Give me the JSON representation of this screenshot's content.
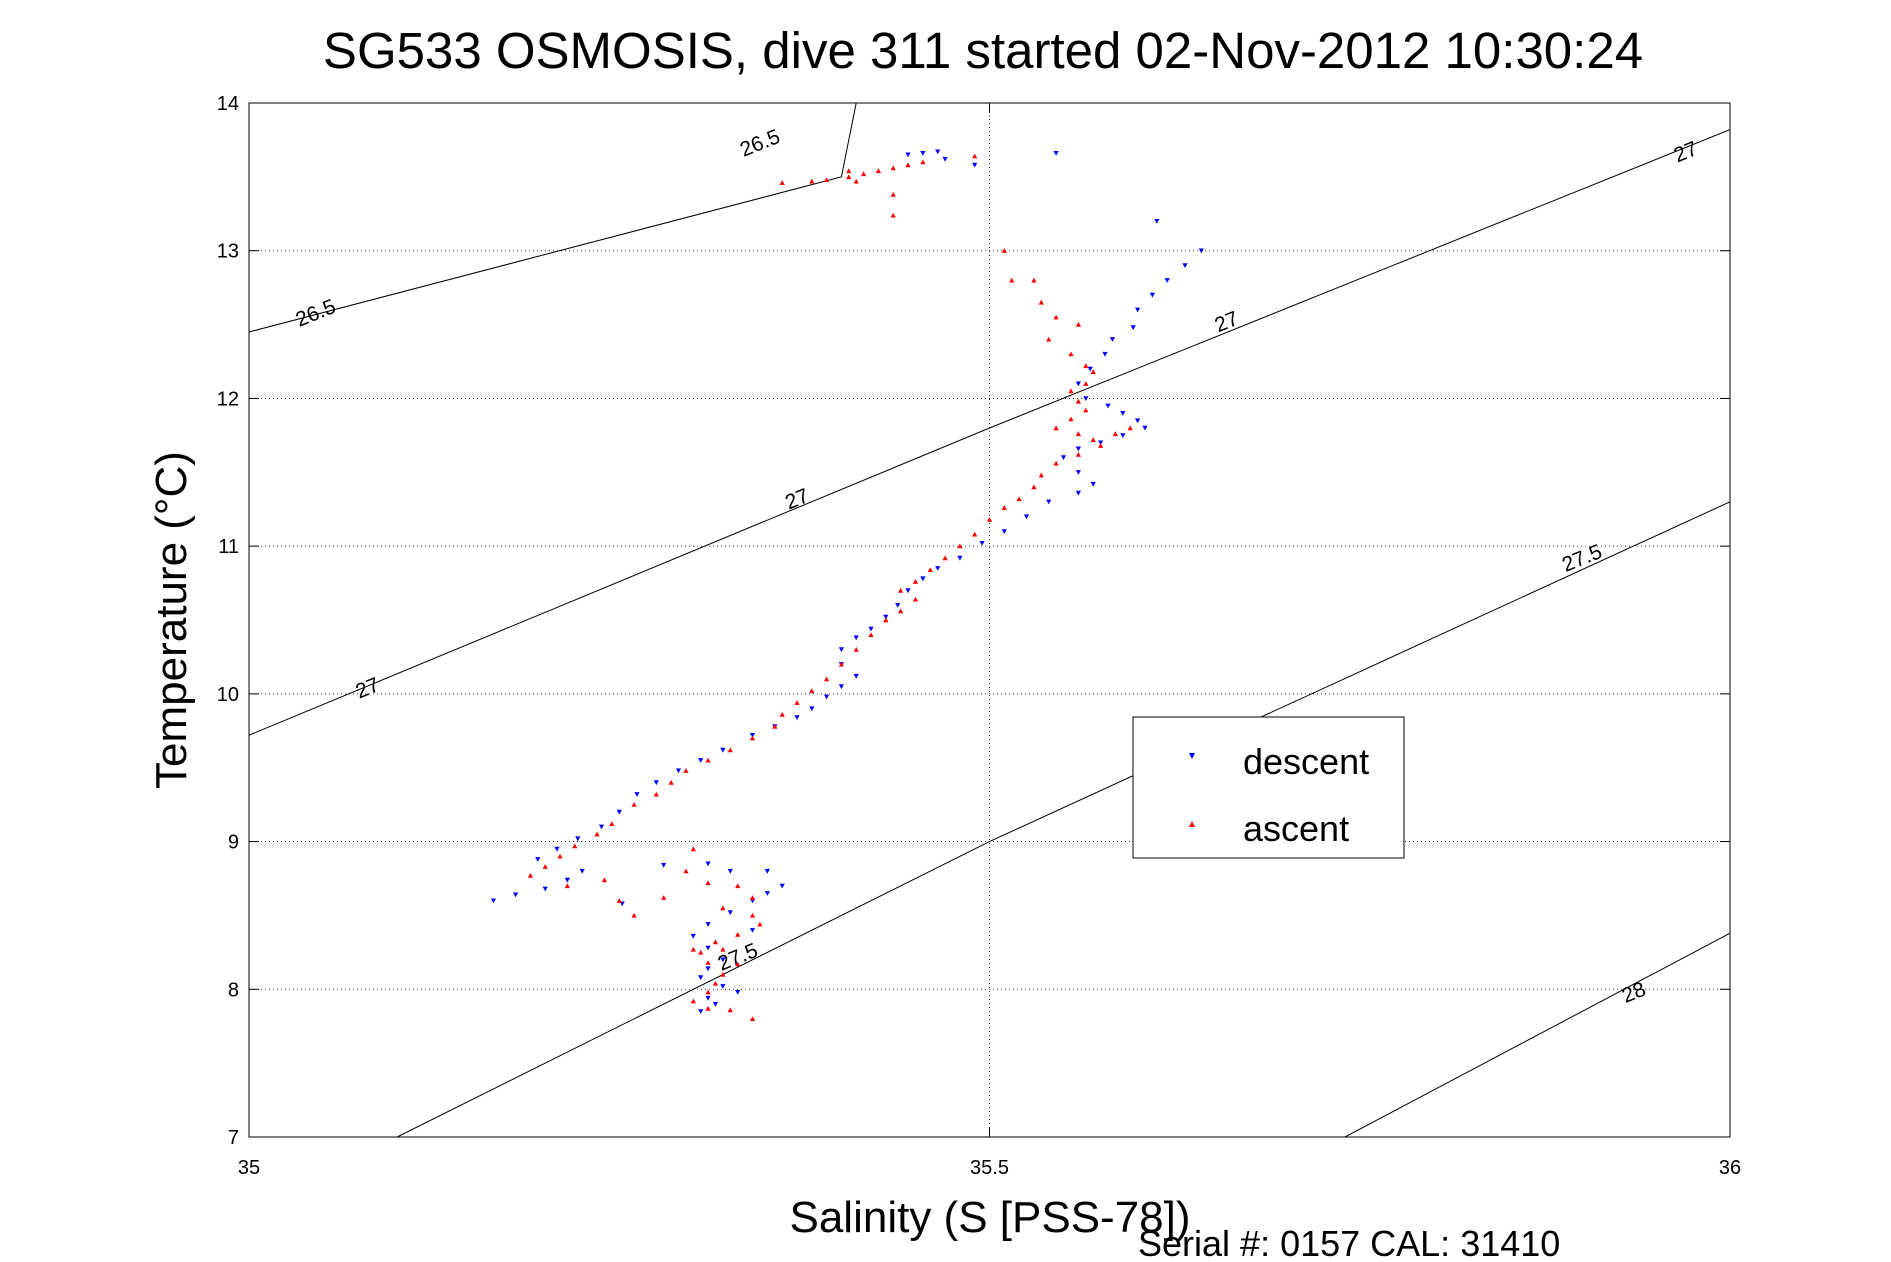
{
  "chart_data": {
    "type": "scatter",
    "title": "SG533 OSMOSIS, dive 311 started 02-Nov-2012 10:30:24",
    "xlabel": "Salinity (S [PSS-78])",
    "ylabel": "Temperature (°C)",
    "xlim": [
      35,
      36
    ],
    "ylim": [
      7,
      14
    ],
    "xticks": [
      35,
      35.5,
      36
    ],
    "xtick_labels": [
      "35",
      "35.5",
      "36"
    ],
    "yticks": [
      7,
      8,
      9,
      10,
      11,
      12,
      13,
      14
    ],
    "ytick_labels": [
      "7",
      "8",
      "9",
      "10",
      "11",
      "12",
      "13",
      "14"
    ],
    "grid": true,
    "legend_position": "center-right",
    "density_contours": [
      {
        "label": "26.5",
        "points": [
          [
            35,
            12.45
          ],
          [
            35.4,
            13.5
          ],
          [
            35.41,
            14.0
          ]
        ]
      },
      {
        "label": "27",
        "points": [
          [
            35,
            9.72
          ],
          [
            35.5,
            11.8
          ],
          [
            36,
            13.82
          ]
        ]
      },
      {
        "label": "27.5",
        "points": [
          [
            35.1,
            7.0
          ],
          [
            35.5,
            9.0
          ],
          [
            36,
            11.3
          ]
        ]
      },
      {
        "label": "28",
        "points": [
          [
            35.74,
            7.0
          ],
          [
            36,
            8.38
          ]
        ]
      }
    ],
    "contour_labels": [
      {
        "text": "26.5",
        "s": 35.345,
        "t": 13.73
      },
      {
        "text": "26.5",
        "s": 35.045,
        "t": 12.58
      },
      {
        "text": "27",
        "s": 35.37,
        "t": 11.32
      },
      {
        "text": "27",
        "s": 35.08,
        "t": 10.04
      },
      {
        "text": "27",
        "s": 35.66,
        "t": 12.52
      },
      {
        "text": "27",
        "s": 35.97,
        "t": 13.67
      },
      {
        "text": "27.5",
        "s": 35.33,
        "t": 8.22
      },
      {
        "text": "27.5",
        "s": 35.9,
        "t": 10.92
      },
      {
        "text": "28",
        "s": 35.935,
        "t": 7.98
      }
    ],
    "series": [
      {
        "name": "descent",
        "color": "#0000ff",
        "marker": "triangle-down",
        "points": [
          [
            35.465,
            13.67
          ],
          [
            35.455,
            13.66
          ],
          [
            35.445,
            13.65
          ],
          [
            35.47,
            13.62
          ],
          [
            35.49,
            13.58
          ],
          [
            35.545,
            13.66
          ],
          [
            35.613,
            13.2
          ],
          [
            35.643,
            13.0
          ],
          [
            35.632,
            12.9
          ],
          [
            35.62,
            12.8
          ],
          [
            35.61,
            12.7
          ],
          [
            35.6,
            12.6
          ],
          [
            35.597,
            12.48
          ],
          [
            35.583,
            12.4
          ],
          [
            35.578,
            12.3
          ],
          [
            35.568,
            12.2
          ],
          [
            35.56,
            12.1
          ],
          [
            35.565,
            12.0
          ],
          [
            35.58,
            11.95
          ],
          [
            35.59,
            11.9
          ],
          [
            35.6,
            11.85
          ],
          [
            35.605,
            11.8
          ],
          [
            35.59,
            11.75
          ],
          [
            35.575,
            11.7
          ],
          [
            35.56,
            11.66
          ],
          [
            35.55,
            11.6
          ],
          [
            35.56,
            11.5
          ],
          [
            35.57,
            11.42
          ],
          [
            35.56,
            11.36
          ],
          [
            35.54,
            11.3
          ],
          [
            35.525,
            11.2
          ],
          [
            35.51,
            11.1
          ],
          [
            35.495,
            11.02
          ],
          [
            35.48,
            10.92
          ],
          [
            35.465,
            10.85
          ],
          [
            35.455,
            10.78
          ],
          [
            35.445,
            10.7
          ],
          [
            35.438,
            10.6
          ],
          [
            35.43,
            10.52
          ],
          [
            35.42,
            10.44
          ],
          [
            35.41,
            10.38
          ],
          [
            35.4,
            10.3
          ],
          [
            35.4,
            10.2
          ],
          [
            35.41,
            10.12
          ],
          [
            35.4,
            10.05
          ],
          [
            35.39,
            9.98
          ],
          [
            35.38,
            9.9
          ],
          [
            35.37,
            9.84
          ],
          [
            35.355,
            9.78
          ],
          [
            35.34,
            9.72
          ],
          [
            35.32,
            9.62
          ],
          [
            35.305,
            9.55
          ],
          [
            35.29,
            9.48
          ],
          [
            35.275,
            9.4
          ],
          [
            35.262,
            9.32
          ],
          [
            35.25,
            9.2
          ],
          [
            35.238,
            9.1
          ],
          [
            35.222,
            9.02
          ],
          [
            35.208,
            8.95
          ],
          [
            35.195,
            8.88
          ],
          [
            35.28,
            8.84
          ],
          [
            35.225,
            8.8
          ],
          [
            35.215,
            8.74
          ],
          [
            35.2,
            8.68
          ],
          [
            35.18,
            8.64
          ],
          [
            35.165,
            8.6
          ],
          [
            35.252,
            8.58
          ],
          [
            35.31,
            8.85
          ],
          [
            35.325,
            8.8
          ],
          [
            35.35,
            8.8
          ],
          [
            35.36,
            8.7
          ],
          [
            35.35,
            8.65
          ],
          [
            35.34,
            8.6
          ],
          [
            35.325,
            8.52
          ],
          [
            35.31,
            8.44
          ],
          [
            35.3,
            8.36
          ],
          [
            35.31,
            8.28
          ],
          [
            35.32,
            8.2
          ],
          [
            35.31,
            8.14
          ],
          [
            35.305,
            8.08
          ],
          [
            35.32,
            8.02
          ],
          [
            35.33,
            7.98
          ],
          [
            35.31,
            7.94
          ],
          [
            35.315,
            7.9
          ],
          [
            35.305,
            7.85
          ],
          [
            35.34,
            8.4
          ]
        ]
      },
      {
        "name": "ascent",
        "color": "#ff0000",
        "marker": "triangle-up",
        "points": [
          [
            35.38,
            13.47
          ],
          [
            35.39,
            13.48
          ],
          [
            35.405,
            13.5
          ],
          [
            35.415,
            13.52
          ],
          [
            35.425,
            13.54
          ],
          [
            35.435,
            13.56
          ],
          [
            35.445,
            13.58
          ],
          [
            35.455,
            13.6
          ],
          [
            35.405,
            13.54
          ],
          [
            35.435,
            13.38
          ],
          [
            35.435,
            13.24
          ],
          [
            35.41,
            13.47
          ],
          [
            35.36,
            13.46
          ],
          [
            35.49,
            13.64
          ],
          [
            35.51,
            13.0
          ],
          [
            35.515,
            12.8
          ],
          [
            35.53,
            12.8
          ],
          [
            35.535,
            12.65
          ],
          [
            35.545,
            12.55
          ],
          [
            35.56,
            12.5
          ],
          [
            35.54,
            12.4
          ],
          [
            35.555,
            12.3
          ],
          [
            35.565,
            12.22
          ],
          [
            35.57,
            12.18
          ],
          [
            35.565,
            12.1
          ],
          [
            35.555,
            12.05
          ],
          [
            35.56,
            11.98
          ],
          [
            35.565,
            11.92
          ],
          [
            35.555,
            11.86
          ],
          [
            35.545,
            11.8
          ],
          [
            35.56,
            11.76
          ],
          [
            35.57,
            11.72
          ],
          [
            35.585,
            11.76
          ],
          [
            35.595,
            11.8
          ],
          [
            35.575,
            11.68
          ],
          [
            35.56,
            11.62
          ],
          [
            35.545,
            11.56
          ],
          [
            35.535,
            11.48
          ],
          [
            35.53,
            11.4
          ],
          [
            35.52,
            11.32
          ],
          [
            35.51,
            11.26
          ],
          [
            35.5,
            11.18
          ],
          [
            35.49,
            11.08
          ],
          [
            35.48,
            11.0
          ],
          [
            35.47,
            10.92
          ],
          [
            35.46,
            10.84
          ],
          [
            35.45,
            10.76
          ],
          [
            35.44,
            10.7
          ],
          [
            35.45,
            10.64
          ],
          [
            35.44,
            10.56
          ],
          [
            35.43,
            10.5
          ],
          [
            35.42,
            10.4
          ],
          [
            35.41,
            10.3
          ],
          [
            35.4,
            10.2
          ],
          [
            35.39,
            10.1
          ],
          [
            35.38,
            10.02
          ],
          [
            35.37,
            9.94
          ],
          [
            35.36,
            9.86
          ],
          [
            35.355,
            9.78
          ],
          [
            35.34,
            9.7
          ],
          [
            35.325,
            9.62
          ],
          [
            35.31,
            9.55
          ],
          [
            35.295,
            9.48
          ],
          [
            35.285,
            9.4
          ],
          [
            35.275,
            9.32
          ],
          [
            35.26,
            9.25
          ],
          [
            35.245,
            9.12
          ],
          [
            35.235,
            9.05
          ],
          [
            35.22,
            8.97
          ],
          [
            35.21,
            8.9
          ],
          [
            35.2,
            8.83
          ],
          [
            35.19,
            8.77
          ],
          [
            35.215,
            8.7
          ],
          [
            35.24,
            8.74
          ],
          [
            35.25,
            8.6
          ],
          [
            35.26,
            8.5
          ],
          [
            35.28,
            8.62
          ],
          [
            35.3,
            8.95
          ],
          [
            35.295,
            8.8
          ],
          [
            35.31,
            8.72
          ],
          [
            35.33,
            8.7
          ],
          [
            35.34,
            8.62
          ],
          [
            35.32,
            8.55
          ],
          [
            35.34,
            8.5
          ],
          [
            35.345,
            8.44
          ],
          [
            35.33,
            8.37
          ],
          [
            35.315,
            8.32
          ],
          [
            35.305,
            8.25
          ],
          [
            35.31,
            8.18
          ],
          [
            35.32,
            8.1
          ],
          [
            35.315,
            8.04
          ],
          [
            35.31,
            7.98
          ],
          [
            35.3,
            7.92
          ],
          [
            35.31,
            7.87
          ],
          [
            35.325,
            7.86
          ],
          [
            35.34,
            7.8
          ],
          [
            35.32,
            8.27
          ],
          [
            35.33,
            8.17
          ],
          [
            35.3,
            8.27
          ]
        ]
      }
    ]
  },
  "legend": {
    "descent_label": "descent",
    "ascent_label": "ascent"
  },
  "footer": {
    "serial_text": "Serial #: 0157  CAL: 31410"
  }
}
